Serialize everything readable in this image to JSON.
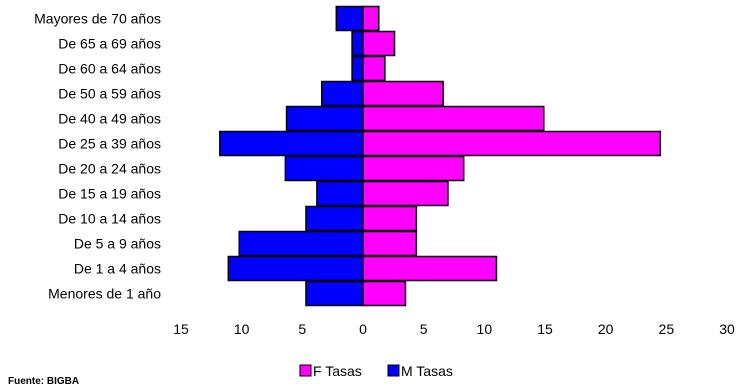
{
  "chart_data": {
    "type": "bar",
    "orientation": "horizontal",
    "categories": [
      "Mayores de 70 años",
      "De 65 a 69 años",
      "De 60 a 64 años",
      "De 50 a 59 años",
      "De 40 a 49 años",
      "De 25 a 39 años",
      "De 20 a 24 años",
      "De 15 a 19 años",
      "De 10 a 14 años",
      "De 5 a 9 años",
      "De 1 a 4 años",
      "Menores de 1 año"
    ],
    "series": [
      {
        "name": "F Tasas",
        "color": "#ff00ff",
        "values": [
          1.3,
          2.6,
          1.8,
          6.6,
          14.9,
          24.5,
          8.3,
          7.0,
          4.4,
          4.4,
          11.0,
          3.5
        ]
      },
      {
        "name": "M Tasas",
        "color": "#0000ff",
        "values": [
          2.2,
          0.9,
          0.9,
          3.4,
          6.3,
          11.8,
          6.4,
          3.8,
          4.7,
          10.2,
          11.1,
          4.7
        ]
      }
    ],
    "xlim": [
      -15,
      30
    ],
    "xticks": [
      -15,
      -10,
      -5,
      0,
      5,
      10,
      15,
      20,
      25,
      30
    ],
    "xtick_labels": [
      "15",
      "10",
      "5",
      "0",
      "5",
      "10",
      "15",
      "20",
      "25",
      "30"
    ],
    "grid": false,
    "legend_position": "bottom",
    "source": "Fuente: BIGBA"
  }
}
